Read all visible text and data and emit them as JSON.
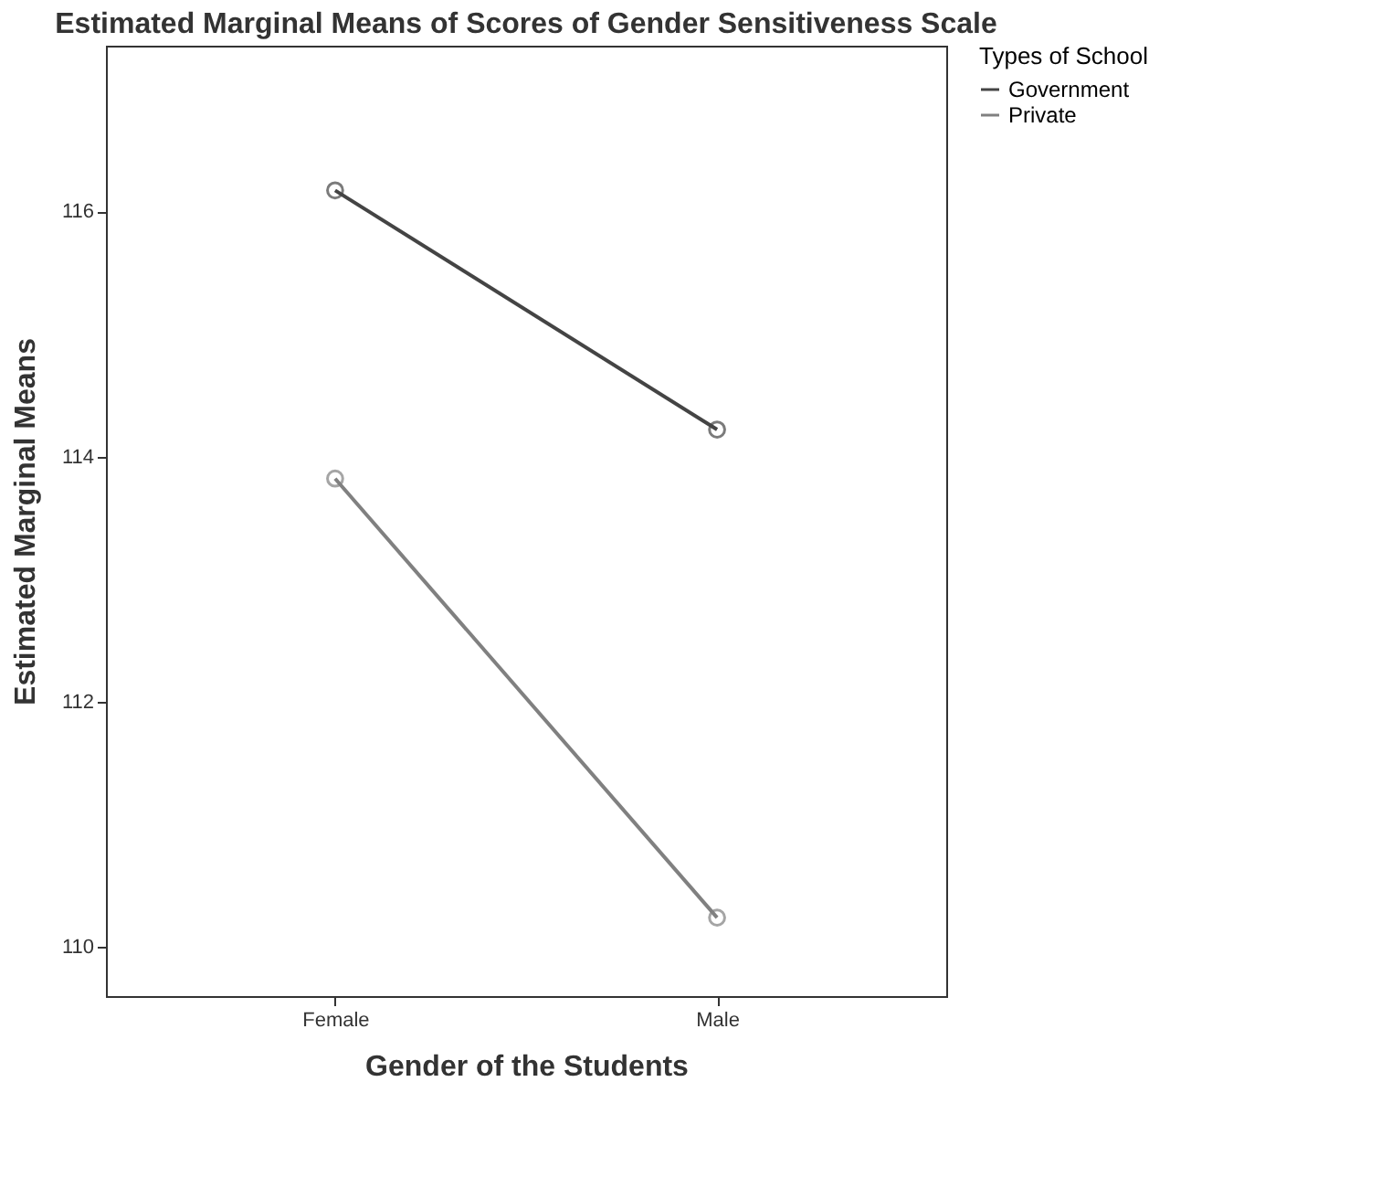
{
  "chart_data": {
    "type": "line",
    "title": "Estimated Marginal Means of Scores of Gender Sensitiveness Scale",
    "xlabel": "Gender of the Students",
    "ylabel": "Estimated Marginal Means",
    "legend_title": "Types of School",
    "categories": [
      "Female",
      "Male"
    ],
    "series": [
      {
        "name": "Government",
        "color": "#444444",
        "values": [
          116.17,
          114.22
        ]
      },
      {
        "name": "Private",
        "color": "#808080",
        "values": [
          113.82,
          110.24
        ]
      }
    ],
    "ylim": [
      109.6,
      117.35
    ],
    "yticks": [
      110,
      112,
      114,
      116
    ],
    "grid": false,
    "legend": "right",
    "marker": "circle",
    "line_style": "solid"
  }
}
